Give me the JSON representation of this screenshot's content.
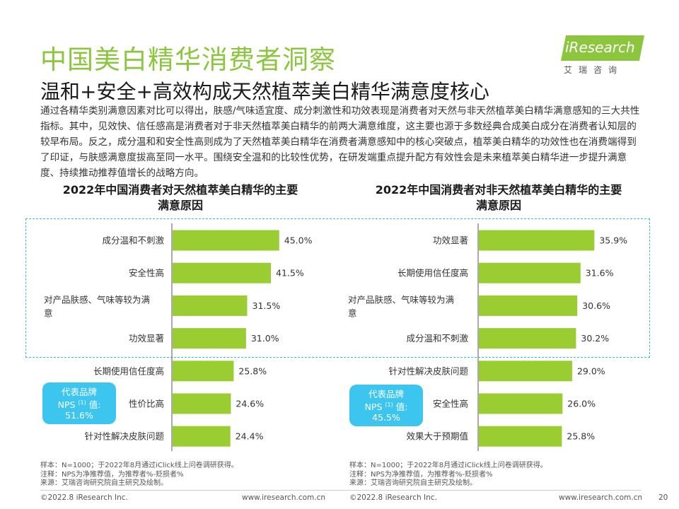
{
  "header": {
    "title": "中国美白精华消费者洞察",
    "subtitle": "温和+安全+高效构成天然植萃美白精华满意度核心",
    "body": "通过各精华类别满意因素对比可以得出，肤感/气味适宜度、成分刺激性和功效表现是消费者对天然与非天然植萃美白精华满意感知的三大共性指标。其中，见效快、信任感高是消费者对于非天然植萃美白精华的前两大满意维度，这主要也源于多数经典合成美白成分在消费者认知层的较早布局。反之，成分温和和安全性高则成为了天然植萃美白精华在消费者满意感知中的核心突破点，植萃美白精华的功效性也在消费端得到了印证，与肤感满意度拔高至同一水平。围绕安全温和的比较性优势，在研发端重点提升配方有效性会是未来植萃美白精华进一步提升满意度、持续推动推荐值增长的战略方向。"
  },
  "logo": {
    "text": "iResearch",
    "cn": "艾瑞咨询"
  },
  "colors": {
    "bar": "#9acd32",
    "title": "#8cc63f",
    "highlight": "#3cb9e3",
    "nps": "#3cc6ef"
  },
  "chart_data": [
    {
      "type": "bar",
      "orientation": "horizontal",
      "title": "2022年中国消费者对天然植萃美白精华的主要满意原因",
      "categories": [
        "成分温和不刺激",
        "安全性高",
        "对产品肤感、气味等较为满意",
        "功效显著",
        "长期使用信任度高",
        "性价比高",
        "针对性解决皮肤问题"
      ],
      "values": [
        45.0,
        41.5,
        31.5,
        31.0,
        25.8,
        24.6,
        24.4
      ],
      "value_labels": [
        "45.0%",
        "41.5%",
        "31.5%",
        "31.0%",
        "25.8%",
        "24.6%",
        "24.4%"
      ],
      "unit": "%",
      "xlim": [
        0,
        100
      ]
    },
    {
      "type": "bar",
      "orientation": "horizontal",
      "title": "2022年中国消费者对非天然植萃美白精华的主要满意原因",
      "categories": [
        "功效显著",
        "长期使用信任度高",
        "对产品肤感、气味等较为满意",
        "成分温和不刺激",
        "针对性解决皮肤问题",
        "安全性高",
        "效果大于预期值"
      ],
      "values": [
        35.9,
        31.6,
        30.6,
        30.2,
        29.0,
        26.0,
        25.8
      ],
      "value_labels": [
        "35.9%",
        "31.6%",
        "30.6%",
        "30.2%",
        "29.0%",
        "26.0%",
        "25.8%"
      ],
      "unit": "%",
      "xlim": [
        0,
        100
      ]
    }
  ],
  "charts": {
    "left_title_line1": "2022年中国消费者对天然植萃美白精华的主要",
    "left_title_line2": "满意原因",
    "right_title_line1": "2022年中国消费者对非天然植萃美白精华的主要",
    "right_title_line2": "满意原因"
  },
  "nps": {
    "left": {
      "line1": "代表品牌",
      "line2a": "NPS",
      "sup": "(1)",
      "line2b": "值:",
      "value": "51.6%"
    },
    "right": {
      "line1": "代表品牌",
      "line2a": "NPS",
      "sup": "(1)",
      "line2b": "值:",
      "value": "45.5%"
    }
  },
  "notes": {
    "sample": "样本：N=1000；于2022年8月通过iClick线上问卷调研获得。",
    "note": "注释：NPS为净推荐值，为推荐者%-贬损者%",
    "source": "来源：艾瑞咨询研究院自主研究及绘制。"
  },
  "footer": {
    "copyright": "©2022.8 iResearch Inc.",
    "url": "www.iresearch.com.cn",
    "page": "20"
  }
}
